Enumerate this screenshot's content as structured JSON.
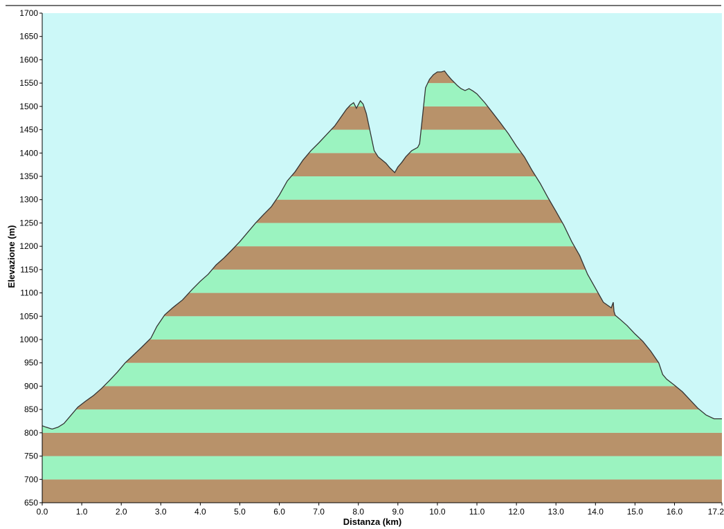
{
  "chart_data": {
    "type": "area",
    "title": "",
    "xlabel": "Distanza  (km)",
    "ylabel": "Elevazione (m)",
    "xlim": [
      0,
      17.2
    ],
    "ylim": [
      650,
      1700
    ],
    "x_ticks": [
      "0.0",
      "1.0",
      "2.0",
      "3.0",
      "4.0",
      "5.0",
      "6.0",
      "7.0",
      "8.0",
      "9.0",
      "10.0",
      "11.0",
      "12.0",
      "13.0",
      "14.0",
      "15.0",
      "16.0",
      "17.2"
    ],
    "y_ticks": [
      650,
      700,
      750,
      800,
      850,
      900,
      950,
      1000,
      1050,
      1100,
      1150,
      1200,
      1250,
      1300,
      1350,
      1400,
      1450,
      1500,
      1550,
      1600,
      1650,
      1700
    ],
    "band_step": 50,
    "grid": false,
    "colors": {
      "sky": "#ccf8f8",
      "band_light": "#9bf3c0",
      "band_dark": "#b8926a",
      "outline": "#333333"
    },
    "x": [
      0.0,
      0.1,
      0.25,
      0.4,
      0.55,
      0.7,
      0.9,
      1.1,
      1.3,
      1.5,
      1.7,
      1.9,
      2.1,
      2.3,
      2.5,
      2.75,
      2.9,
      3.1,
      3.3,
      3.55,
      3.8,
      4.0,
      4.2,
      4.4,
      4.6,
      4.8,
      5.0,
      5.2,
      5.4,
      5.6,
      5.8,
      6.0,
      6.2,
      6.4,
      6.6,
      6.8,
      7.0,
      7.2,
      7.4,
      7.5,
      7.6,
      7.7,
      7.8,
      7.88,
      7.95,
      8.05,
      8.12,
      8.2,
      8.3,
      8.4,
      8.5,
      8.6,
      8.7,
      8.8,
      8.92,
      9.0,
      9.1,
      9.2,
      9.35,
      9.5,
      9.55,
      9.6,
      9.7,
      9.8,
      9.9,
      10.0,
      10.1,
      10.18,
      10.25,
      10.35,
      10.5,
      10.6,
      10.7,
      10.8,
      10.9,
      11.0,
      11.2,
      11.4,
      11.6,
      11.8,
      12.0,
      12.2,
      12.4,
      12.6,
      12.8,
      13.0,
      13.2,
      13.4,
      13.6,
      13.8,
      14.0,
      14.2,
      14.4,
      14.45,
      14.47,
      14.5,
      14.6,
      14.8,
      15.0,
      15.2,
      15.4,
      15.6,
      15.7,
      15.8,
      16.0,
      16.2,
      16.4,
      16.6,
      16.8,
      17.0,
      17.2
    ],
    "y": [
      815,
      812,
      808,
      812,
      820,
      835,
      855,
      868,
      880,
      895,
      912,
      930,
      950,
      966,
      982,
      1003,
      1028,
      1053,
      1068,
      1085,
      1108,
      1125,
      1140,
      1160,
      1175,
      1192,
      1210,
      1230,
      1250,
      1268,
      1285,
      1310,
      1340,
      1360,
      1385,
      1405,
      1422,
      1440,
      1458,
      1470,
      1482,
      1494,
      1503,
      1508,
      1496,
      1512,
      1505,
      1485,
      1445,
      1405,
      1392,
      1385,
      1378,
      1368,
      1358,
      1370,
      1380,
      1392,
      1405,
      1412,
      1420,
      1460,
      1540,
      1558,
      1568,
      1574,
      1574,
      1576,
      1568,
      1558,
      1545,
      1538,
      1534,
      1538,
      1533,
      1527,
      1508,
      1486,
      1464,
      1441,
      1415,
      1392,
      1362,
      1335,
      1304,
      1275,
      1245,
      1210,
      1180,
      1140,
      1110,
      1080,
      1068,
      1080,
      1060,
      1052,
      1045,
      1030,
      1012,
      996,
      975,
      950,
      925,
      915,
      902,
      888,
      870,
      852,
      838,
      830,
      830
    ]
  }
}
